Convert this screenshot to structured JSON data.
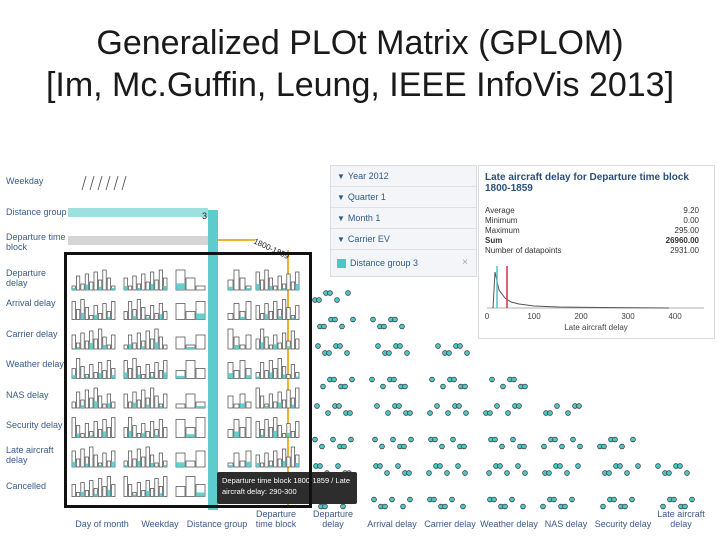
{
  "slide": {
    "title_line1": "Generalized PLOt Matrix (GPLOM)",
    "title_line2": "[Im, Mc.Guffin, Leung, IEEE InfoVis 2013]"
  },
  "gplom": {
    "row_labels": [
      "Weekday",
      "Distance group",
      "Departure time block",
      "Departure delay",
      "Arrival delay",
      "Carrier delay",
      "Weather delay",
      "NAS delay",
      "Security delay",
      "Late aircraft delay",
      "Cancelled"
    ],
    "column_labels": [
      "Day of month",
      "Weekday",
      "Distance group",
      "Departure time block",
      "Departure delay",
      "Arrival delay",
      "Carrier delay",
      "Weather delay",
      "NAS delay",
      "Security delay",
      "Late aircraft delay"
    ],
    "distance_marker": "3",
    "time_marker": "1800-1859",
    "highlight_color": "#4dc6c6",
    "selection_color": "#f0b030"
  },
  "filters": {
    "items": [
      {
        "icon": "funnel-icon",
        "label": "Year 2012"
      },
      {
        "icon": "funnel-icon",
        "label": "Quarter 1"
      },
      {
        "icon": "funnel-icon",
        "label": "Month 1"
      },
      {
        "icon": "funnel-icon",
        "label": "Carrier EV"
      }
    ],
    "selection": {
      "label": "Distance group 3",
      "close": "×"
    }
  },
  "stats": {
    "title": "Late aircraft delay for Departure time block 1800-1859",
    "rows": [
      {
        "label": "Average",
        "value": "9.20"
      },
      {
        "label": "Minimum",
        "value": "0.00"
      },
      {
        "label": "Maximum",
        "value": "295.00"
      },
      {
        "label": "Sum",
        "value": "26960.00"
      },
      {
        "label": "Number of datapoints",
        "value": "2931.00"
      }
    ],
    "axis_ticks": [
      "0",
      "100",
      "200",
      "300",
      "400"
    ],
    "axis_label": "Late aircraft delay"
  },
  "tooltip": {
    "line1": "Departure time block 1800-1859 / Late",
    "line2": "aircraft delay: 290-300"
  }
}
